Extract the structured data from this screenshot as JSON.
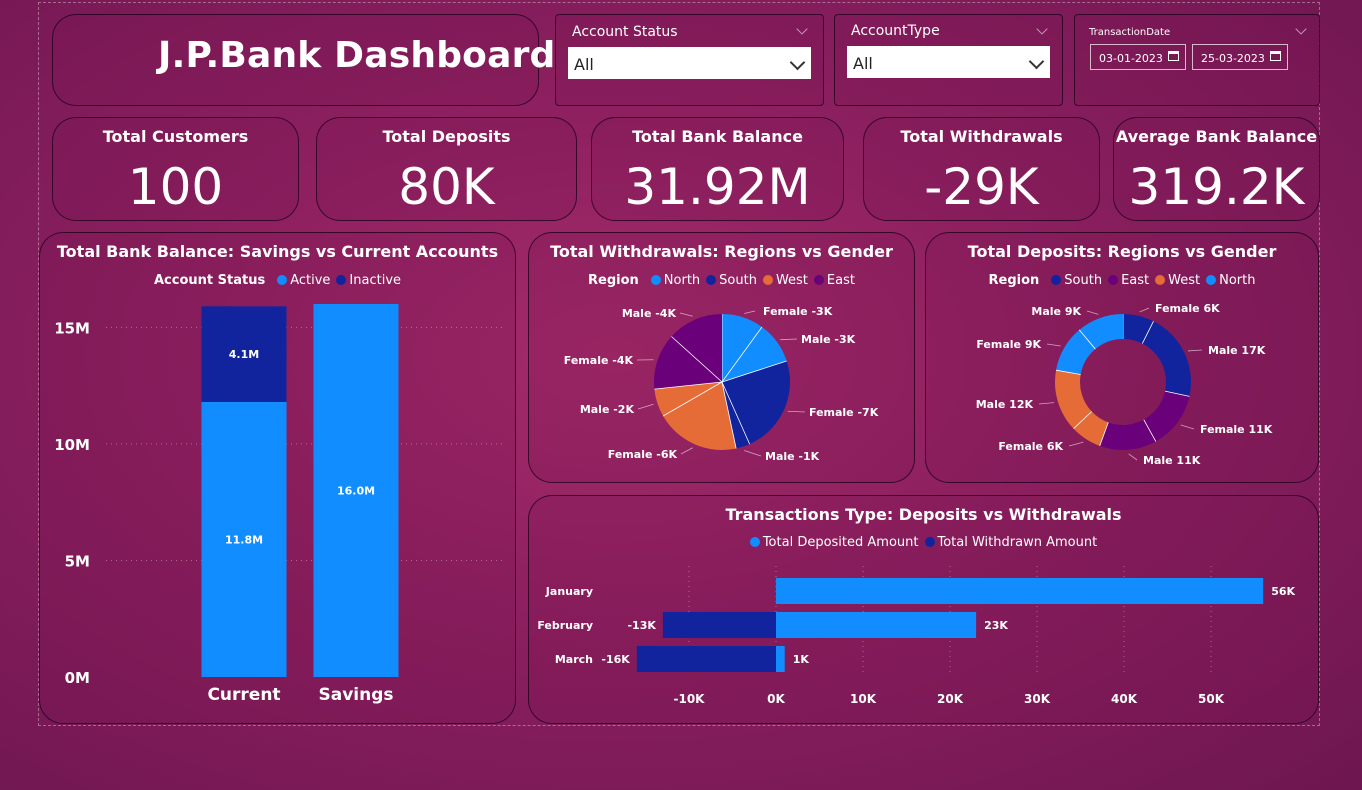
{
  "header": {
    "title": "J.P.Bank Dashboard"
  },
  "filters": {
    "account_status": {
      "label": "Account Status",
      "value": "All"
    },
    "account_type": {
      "label": "AccountType",
      "value": "All"
    },
    "transaction_date": {
      "label": "TransactionDate",
      "start": "03-01-2023",
      "end": "25-03-2023"
    }
  },
  "kpis": [
    {
      "label": "Total Customers",
      "value": "100"
    },
    {
      "label": "Total Deposits",
      "value": "80K"
    },
    {
      "label": "Total Bank Balance",
      "value": "31.92M"
    },
    {
      "label": "Total Withdrawals",
      "value": "-29K"
    },
    {
      "label": "Average Bank Balance",
      "value": "319.2K"
    }
  ],
  "colors": {
    "north": "#118dff",
    "south": "#12239e",
    "west": "#e66c37",
    "east": "#6b007b",
    "active": "#118dff",
    "inactive": "#12239e",
    "deposit": "#118dff",
    "withdrawn": "#12239e"
  },
  "chart_data": [
    {
      "type": "bar",
      "title": "Total Bank Balance: Savings vs Current Accounts",
      "legend_title": "Account Status",
      "categories": [
        "Current",
        "Savings"
      ],
      "series": [
        {
          "name": "Active",
          "values": [
            11.8,
            16.0
          ],
          "labels": [
            "11.8M",
            "16.0M"
          ]
        },
        {
          "name": "Inactive",
          "values": [
            4.1,
            0
          ],
          "labels": [
            "4.1M",
            ""
          ]
        }
      ],
      "stacked": true,
      "ylim": [
        0,
        16
      ],
      "yticks": [
        "0M",
        "5M",
        "10M",
        "15M"
      ],
      "ytick_values": [
        0,
        5,
        10,
        15
      ]
    },
    {
      "type": "pie",
      "title": "Total Withdrawals: Regions vs Gender",
      "legend_title": "Region",
      "legend": [
        "North",
        "South",
        "West",
        "East"
      ],
      "slices": [
        {
          "label": "Female -3K",
          "value": 3,
          "region": "north"
        },
        {
          "label": "Male -3K",
          "value": 3,
          "region": "north"
        },
        {
          "label": "Female -7K",
          "value": 7,
          "region": "south"
        },
        {
          "label": "Male -1K",
          "value": 1,
          "region": "south"
        },
        {
          "label": "Female -6K",
          "value": 6,
          "region": "west"
        },
        {
          "label": "Male -2K",
          "value": 2,
          "region": "west"
        },
        {
          "label": "Female -4K",
          "value": 4,
          "region": "east"
        },
        {
          "label": "Male -4K",
          "value": 4,
          "region": "east"
        }
      ]
    },
    {
      "type": "pie",
      "donut": true,
      "title": "Total Deposits: Regions vs Gender",
      "legend_title": "Region",
      "legend": [
        "South",
        "East",
        "West",
        "North"
      ],
      "slices": [
        {
          "label": "Female 6K",
          "value": 6,
          "region": "south"
        },
        {
          "label": "Male 17K",
          "value": 17,
          "region": "south"
        },
        {
          "label": "Female 11K",
          "value": 11,
          "region": "east"
        },
        {
          "label": "Male 11K",
          "value": 11,
          "region": "east"
        },
        {
          "label": "Female 6K",
          "value": 6,
          "region": "west"
        },
        {
          "label": "Male 12K",
          "value": 12,
          "region": "west"
        },
        {
          "label": "Female 9K",
          "value": 9,
          "region": "north"
        },
        {
          "label": "Male 9K",
          "value": 9,
          "region": "north"
        }
      ]
    },
    {
      "type": "bar",
      "orientation": "horizontal",
      "title": "Transactions Type: Deposits vs Withdrawals",
      "categories": [
        "January",
        "February",
        "March"
      ],
      "series": [
        {
          "name": "Total Deposited Amount",
          "values": [
            56,
            23,
            1
          ],
          "labels": [
            "56K",
            "23K",
            "1K"
          ]
        },
        {
          "name": "Total Withdrawn Amount",
          "values": [
            0,
            -13,
            -16
          ],
          "labels": [
            "",
            "-13K",
            "-16K"
          ]
        }
      ],
      "xlim": [
        -15,
        57
      ],
      "xticks": [
        "-10K",
        "0K",
        "10K",
        "20K",
        "30K",
        "40K",
        "50K"
      ],
      "xtick_values": [
        -10,
        0,
        10,
        20,
        30,
        40,
        50
      ]
    }
  ]
}
